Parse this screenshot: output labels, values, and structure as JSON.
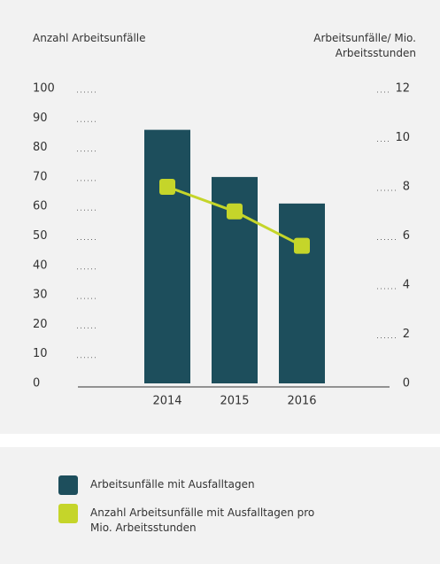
{
  "chart_data": {
    "type": "bar-line",
    "ylabel": "Anzahl Arbeitsunfälle",
    "y2label": "Arbeitsunfälle/ Mio. Arbeitsstunden",
    "categories": [
      "2014",
      "2015",
      "2016"
    ],
    "series": [
      {
        "name": "Arbeitsunfälle mit Ausfalltagen",
        "type": "bar",
        "color": "#1d4e5c",
        "values": [
          86,
          70,
          61
        ]
      },
      {
        "name": "Anzahl Arbeitsunfälle mit Ausfalltagen pro Mio. Arbeitsstunden",
        "type": "line",
        "axis": "y2",
        "color": "#c5d52a",
        "values": [
          8.0,
          7.0,
          5.6
        ]
      }
    ],
    "ylim": [
      0,
      100
    ],
    "yticks": [
      0,
      10,
      20,
      30,
      40,
      50,
      60,
      70,
      80,
      90,
      100
    ],
    "y2lim": [
      0,
      12
    ],
    "y2ticks": [
      0,
      2,
      4,
      6,
      8,
      10,
      12
    ]
  }
}
